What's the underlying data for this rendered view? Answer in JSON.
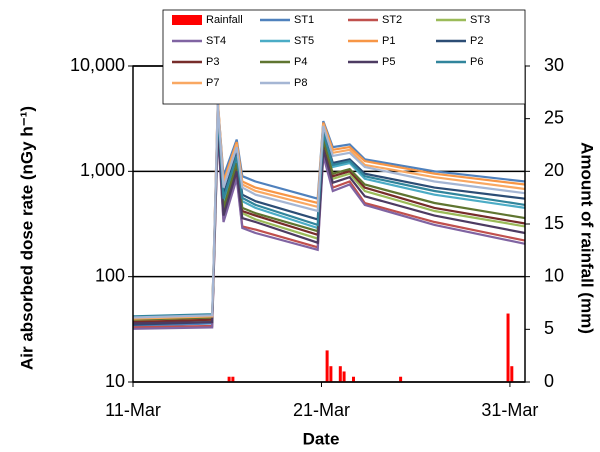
{
  "chart_data": {
    "type": "line",
    "y_log": true,
    "grid": true,
    "ylabel": "Air absorbed dose rate (nGy h⁻¹)",
    "y2label": "Amount of rainfall (mm)",
    "xlabel": "Date",
    "xlim": [
      11,
      31.8
    ],
    "xticks": [
      {
        "value": 11,
        "label": "11-Mar"
      },
      {
        "value": 21,
        "label": "21-Mar"
      },
      {
        "value": 31,
        "label": "31-Mar"
      }
    ],
    "ylim": [
      10,
      10000
    ],
    "yticks": [
      {
        "value": 10000,
        "label": "10,000"
      },
      {
        "value": 1000,
        "label": "1,000"
      },
      100,
      10
    ],
    "y2lim": [
      0,
      30
    ],
    "y2ticks": [
      0,
      5,
      10,
      15,
      20,
      25,
      30
    ],
    "x": [
      11,
      15.2,
      15.5,
      15.8,
      16.5,
      16.8,
      17.5,
      20.8,
      21.1,
      21.6,
      22.5,
      23.3,
      27,
      31.8
    ],
    "rainfall": {
      "name": "Rainfall",
      "color": "#ff0000",
      "axis": "y2",
      "x": [
        16.1,
        16.3,
        21.3,
        21.5,
        22.0,
        22.2,
        22.7,
        25.2,
        30.9,
        31.1
      ],
      "values": [
        0.5,
        0.5,
        3,
        1.5,
        1.5,
        1,
        0.5,
        0.5,
        6.5,
        1.5
      ]
    },
    "series": [
      {
        "name": "ST1",
        "color": "#4f81bd",
        "values": [
          34,
          36,
          4500,
          900,
          2000,
          900,
          800,
          550,
          3000,
          1700,
          1800,
          1300,
          1000,
          800
        ]
      },
      {
        "name": "ST2",
        "color": "#c0504d",
        "values": [
          33,
          34,
          2500,
          350,
          900,
          300,
          280,
          190,
          1500,
          700,
          800,
          500,
          330,
          220
        ]
      },
      {
        "name": "ST3",
        "color": "#9bbb59",
        "values": [
          36,
          38,
          3000,
          400,
          1100,
          400,
          350,
          230,
          1800,
          850,
          950,
          650,
          420,
          300
        ]
      },
      {
        "name": "ST4",
        "color": "#8064a2",
        "values": [
          32,
          33,
          2400,
          330,
          850,
          290,
          260,
          180,
          1400,
          650,
          750,
          480,
          310,
          205
        ]
      },
      {
        "name": "ST5",
        "color": "#4bacc6",
        "values": [
          40,
          42,
          3500,
          500,
          1300,
          520,
          450,
          290,
          2200,
          1100,
          1200,
          850,
          600,
          450
        ]
      },
      {
        "name": "P1",
        "color": "#f79646",
        "values": [
          38,
          40,
          4800,
          800,
          1900,
          800,
          700,
          500,
          2900,
          1600,
          1700,
          1250,
          950,
          750
        ]
      },
      {
        "name": "P2",
        "color": "#2c4d75",
        "values": [
          35,
          37,
          3800,
          600,
          1500,
          600,
          520,
          350,
          2400,
          1200,
          1300,
          950,
          700,
          550
        ]
      },
      {
        "name": "P3",
        "color": "#772c2a",
        "values": [
          37,
          39,
          3200,
          420,
          1150,
          420,
          380,
          250,
          1900,
          900,
          1000,
          700,
          450,
          320
        ]
      },
      {
        "name": "P4",
        "color": "#5f7530",
        "values": [
          39,
          41,
          3300,
          450,
          1200,
          450,
          400,
          270,
          2000,
          950,
          1050,
          750,
          500,
          360
        ]
      },
      {
        "name": "P5",
        "color": "#4d3b62",
        "values": [
          36,
          37,
          2700,
          380,
          1000,
          360,
          330,
          210,
          1600,
          780,
          880,
          580,
          380,
          260
        ]
      },
      {
        "name": "P6",
        "color": "#31859c",
        "values": [
          42,
          44,
          3600,
          550,
          1400,
          560,
          480,
          310,
          2300,
          1150,
          1250,
          900,
          650,
          480
        ]
      },
      {
        "name": "P7",
        "color": "#f9a862",
        "values": [
          40,
          42,
          4600,
          750,
          1800,
          750,
          650,
          460,
          2800,
          1500,
          1600,
          1150,
          880,
          680
        ]
      },
      {
        "name": "P8",
        "color": "#a5b6d4",
        "values": [
          41,
          43,
          4400,
          700,
          1700,
          700,
          600,
          420,
          2700,
          1400,
          1500,
          1100,
          800,
          620
        ]
      }
    ]
  }
}
